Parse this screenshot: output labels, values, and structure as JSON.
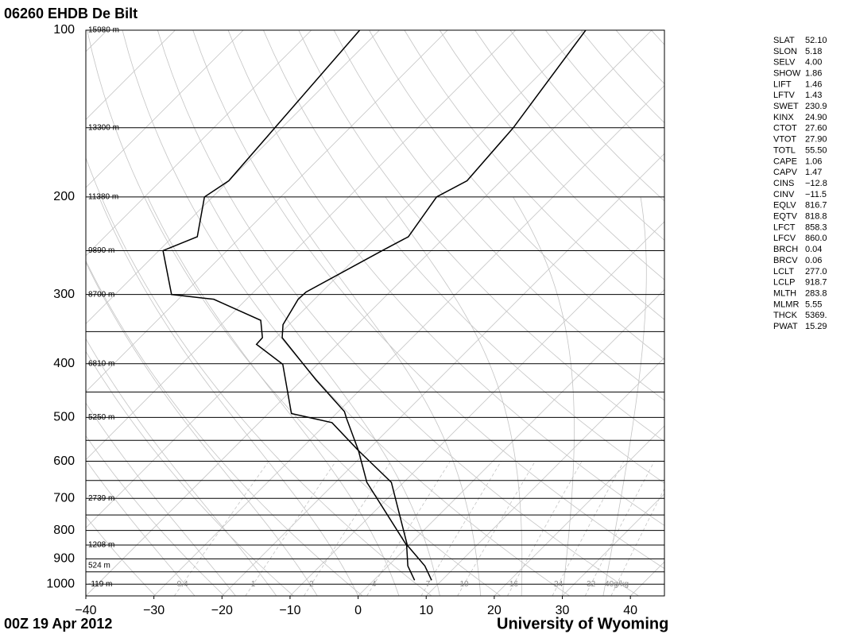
{
  "chart_data": {
    "type": "skewt",
    "title": "06260 EHDB De Bilt",
    "date": "00Z 19 Apr 2012",
    "source": "University of Wyoming",
    "xlim": [
      -40,
      45
    ],
    "ylim": [
      1050,
      100
    ],
    "xticks": [
      {
        "value": -40,
        "label": "−40"
      },
      {
        "value": -30,
        "label": "−30"
      },
      {
        "value": -20,
        "label": "−20"
      },
      {
        "value": -10,
        "label": "−10"
      },
      0,
      10,
      20,
      30,
      40
    ],
    "yticks": [
      100,
      200,
      300,
      400,
      500,
      600,
      700,
      800,
      900,
      1000
    ],
    "ygrid": [
      100,
      150,
      200,
      250,
      300,
      350,
      400,
      450,
      500,
      550,
      600,
      650,
      700,
      750,
      800,
      850,
      900,
      950,
      1000
    ],
    "height_labels": [
      {
        "pressure": 100,
        "label": "15980 m"
      },
      {
        "pressure": 150,
        "label": "13300 m"
      },
      {
        "pressure": 200,
        "label": "11380 m"
      },
      {
        "pressure": 250,
        "label": "9890 m"
      },
      {
        "pressure": 300,
        "label": "8700 m"
      },
      {
        "pressure": 400,
        "label": "6810 m"
      },
      {
        "pressure": 500,
        "label": "5250 m"
      },
      {
        "pressure": 700,
        "label": "2739 m"
      },
      {
        "pressure": 850,
        "label": "1208 m"
      },
      {
        "pressure": 925,
        "label": "524 m"
      },
      {
        "pressure": 1000,
        "label": "-119 m"
      }
    ],
    "mixing_ratio_labels": [
      0.4,
      1,
      2,
      4,
      7,
      10,
      16,
      24,
      32,
      {
        "value": 40,
        "label": "40g/kg"
      }
    ],
    "series": [
      {
        "color": "#000000",
        "pressure": [
          984,
          927,
          851,
          655,
          574,
          503,
          488,
          428,
          359,
          340,
          306,
          297,
          250,
          236,
          200,
          187,
          150,
          100
        ],
        "values": [
          8.5,
          5.4,
          -0.2,
          -11.8,
          -21.3,
          -27.7,
          -29.1,
          -37.9,
          -49.1,
          -50.9,
          -52.4,
          -52.3,
          -47.2,
          -45.4,
          -47.1,
          -45.0,
          -46.0,
          -49.7
        ]
      },
      {
        "color": "#000000",
        "pressure": [
          984,
          927,
          851,
          655,
          574,
          511,
          492,
          401,
          369,
          359,
          334,
          306,
          300,
          250,
          236,
          200,
          187,
          100
        ],
        "values": [
          6.0,
          2.9,
          -0.3,
          -15.4,
          -21.3,
          -29.3,
          -36.6,
          -45.1,
          -51.9,
          -52.0,
          -54.8,
          -64.8,
          -71.7,
          -79.4,
          -76.4,
          -81.2,
          -80.0,
          -82.9
        ]
      }
    ],
    "indices": [
      {
        "name": "SLAT",
        "value": "52.10"
      },
      {
        "name": "SLON",
        "value": "5.18"
      },
      {
        "name": "SELV",
        "value": "4.00"
      },
      {
        "name": "SHOW",
        "value": "1.86"
      },
      {
        "name": "LIFT",
        "value": "1.46"
      },
      {
        "name": "LFTV",
        "value": "1.43"
      },
      {
        "name": "SWET",
        "value": "230.9"
      },
      {
        "name": "KINX",
        "value": "24.90"
      },
      {
        "name": "CTOT",
        "value": "27.60"
      },
      {
        "name": "VTOT",
        "value": "27.90"
      },
      {
        "name": "TOTL",
        "value": "55.50"
      },
      {
        "name": "CAPE",
        "value": "1.06"
      },
      {
        "name": "CAPV",
        "value": "1.47"
      },
      {
        "name": "CINS",
        "value": "−12.8"
      },
      {
        "name": "CINV",
        "value": "−11.5"
      },
      {
        "name": "EQLV",
        "value": "816.7"
      },
      {
        "name": "EQTV",
        "value": "818.8"
      },
      {
        "name": "LFCT",
        "value": "858.3"
      },
      {
        "name": "LFCV",
        "value": "860.0"
      },
      {
        "name": "BRCH",
        "value": "0.04"
      },
      {
        "name": "BRCV",
        "value": "0.06"
      },
      {
        "name": "LCLT",
        "value": "277.0"
      },
      {
        "name": "LCLP",
        "value": "918.7"
      },
      {
        "name": "MLTH",
        "value": "283.8"
      },
      {
        "name": "MLMR",
        "value": "5.55"
      },
      {
        "name": "THCK",
        "value": "5369."
      },
      {
        "name": "PWAT",
        "value": "15.29"
      }
    ]
  }
}
